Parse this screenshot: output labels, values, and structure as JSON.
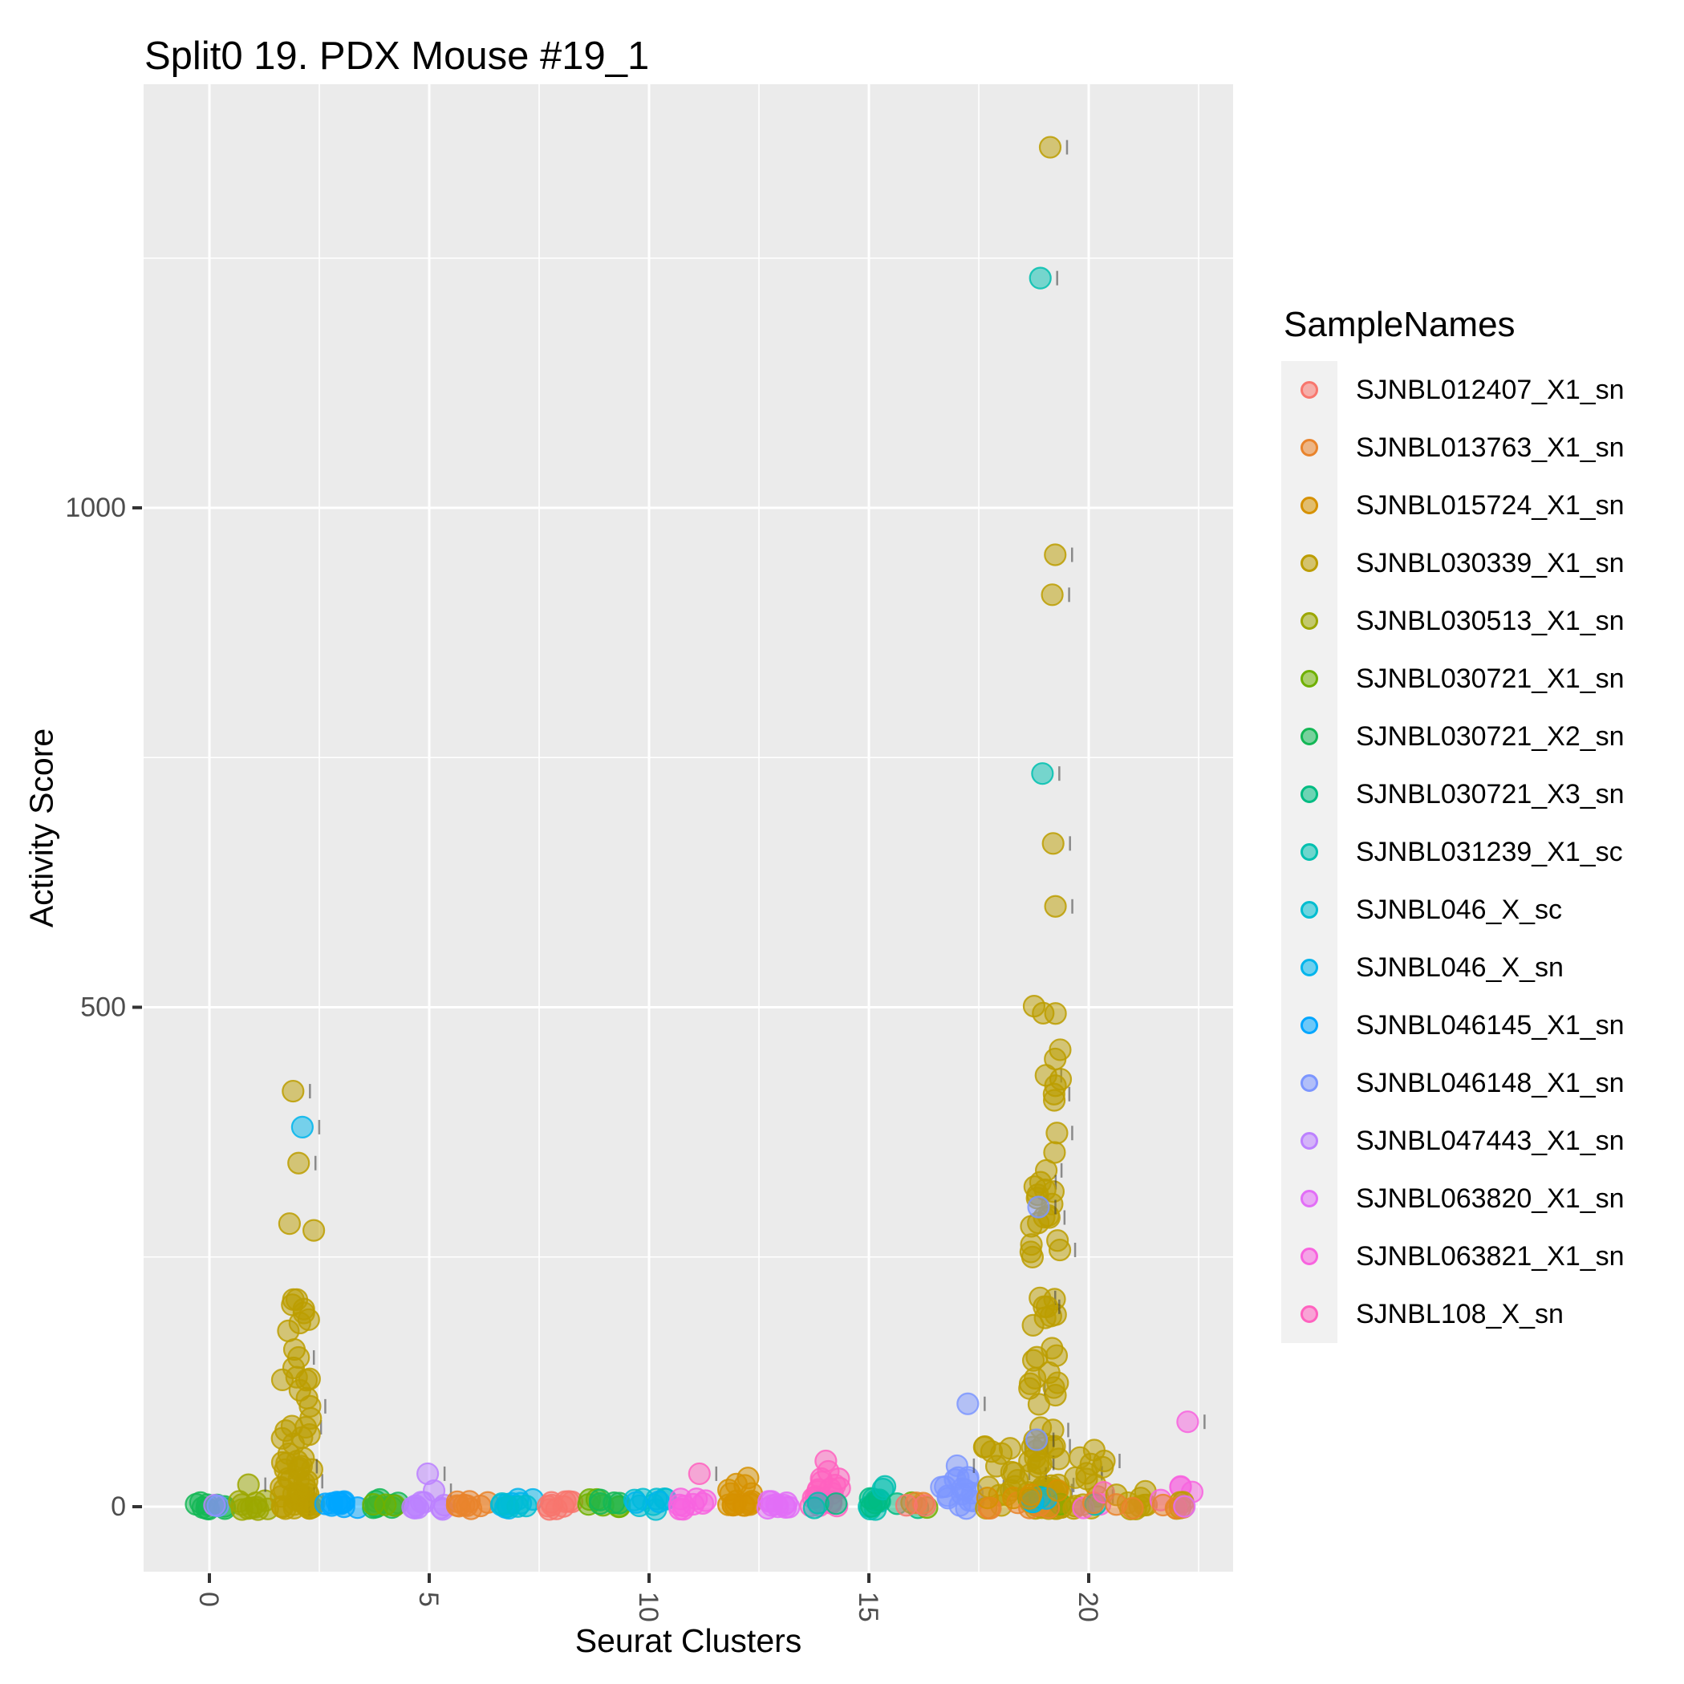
{
  "title": "Split0 19. PDX Mouse #19_1",
  "axes": {
    "x_title": "Seurat Clusters",
    "y_title": "Activity Score",
    "x_tick_labels": [
      "0",
      "5",
      "10",
      "15",
      "20"
    ],
    "y_tick_labels": [
      "0",
      "500",
      "1000"
    ]
  },
  "legend": {
    "title": "SampleNames",
    "items": [
      {
        "name": "SJNBL012407_X1_sn",
        "color": "#F8766D"
      },
      {
        "name": "SJNBL013763_X1_sn",
        "color": "#E9842C"
      },
      {
        "name": "SJNBL015724_X1_sn",
        "color": "#D69100"
      },
      {
        "name": "SJNBL030339_X1_sn",
        "color": "#BC9D00"
      },
      {
        "name": "SJNBL030513_X1_sn",
        "color": "#9CA700"
      },
      {
        "name": "SJNBL030721_X1_sn",
        "color": "#6FB000"
      },
      {
        "name": "SJNBL030721_X2_sn",
        "color": "#13B755"
      },
      {
        "name": "SJNBL030721_X3_sn",
        "color": "#00BC82"
      },
      {
        "name": "SJNBL031239_X1_sc",
        "color": "#00C0AF"
      },
      {
        "name": "SJNBL046_X_sc",
        "color": "#00BDD0"
      },
      {
        "name": "SJNBL046_X_sn",
        "color": "#00B5EC"
      },
      {
        "name": "SJNBL046145_X1_sn",
        "color": "#00A6FF"
      },
      {
        "name": "SJNBL046148_X1_sn",
        "color": "#7C96FF"
      },
      {
        "name": "SJNBL047443_X1_sn",
        "color": "#BC81FF"
      },
      {
        "name": "SJNBL063820_X1_sn",
        "color": "#E26EF7"
      },
      {
        "name": "SJNBL063821_X1_sn",
        "color": "#F863DF"
      },
      {
        "name": "SJNBL108_X_sn",
        "color": "#FF62BF"
      }
    ]
  },
  "colors": {
    "panel_bg": "#EBEBEB",
    "grid": "#FFFFFF",
    "tick_text": "#4D4D4D",
    "tick_mark": "#333333",
    "legend_key_bg": "#F1F1F1"
  },
  "chart_data": {
    "type": "scatter",
    "subtype": "jitter-strip",
    "title": "Split0 19. PDX Mouse #19_1",
    "xlabel": "Seurat Clusters",
    "ylabel": "Activity Score",
    "x_major_ticks": [
      0,
      5,
      10,
      15,
      20
    ],
    "x_minor_ticks": [
      2.5,
      7.5,
      12.5,
      17.5,
      22.5
    ],
    "y_major_ticks": [
      0,
      500,
      1000
    ],
    "y_minor_ticks": [
      250,
      750,
      1250
    ],
    "xlim": [
      -1.5,
      23.3
    ],
    "ylim": [
      -62,
      1425
    ],
    "grid": true,
    "legend_position": "right",
    "point_alpha": 0.5,
    "clusters": [
      {
        "id": 0,
        "groups": [
          [
            "SJNBL030721_X2_sn",
            9,
            -3,
            6,
            1
          ],
          [
            "SJNBL047443_X1_sn",
            1,
            -1,
            2,
            1
          ],
          [
            "SJNBL046148_X1_sn",
            1,
            -1,
            2,
            1
          ]
        ],
        "outliers": []
      },
      {
        "id": 1,
        "groups": [
          [
            "SJNBL030513_X1_sn",
            10,
            -3,
            10,
            1.4
          ]
        ],
        "outliers": [
          [
            "SJNBL030513_X1_sn",
            22
          ]
        ]
      },
      {
        "id": 2,
        "groups": [
          [
            "SJNBL030339_X1_sn",
            55,
            -2,
            145,
            2.0
          ],
          [
            "SJNBL030339_X1_sn",
            12,
            145,
            285,
            1.3
          ]
        ],
        "outliers": [
          [
            "SJNBL030339_X1_sn",
            344
          ],
          [
            "SJNBL046_X_sn",
            380
          ],
          [
            "SJNBL030339_X1_sn",
            416
          ]
        ]
      },
      {
        "id": 3,
        "groups": [
          [
            "SJNBL046145_X1_sn",
            10,
            -3,
            6,
            1
          ]
        ],
        "outliers": []
      },
      {
        "id": 4,
        "groups": [
          [
            "SJNBL030721_X2_sn",
            8,
            -3,
            8,
            1
          ],
          [
            "SJNBL030721_X1_sn",
            3,
            0,
            6,
            1
          ]
        ],
        "outliers": []
      },
      {
        "id": 5,
        "groups": [
          [
            "SJNBL047443_X1_sn",
            9,
            -3,
            6,
            1
          ]
        ],
        "outliers": [
          [
            "SJNBL047443_X1_sn",
            16
          ],
          [
            "SJNBL047443_X1_sn",
            33
          ]
        ]
      },
      {
        "id": 6,
        "groups": [
          [
            "SJNBL013763_X1_sn",
            9,
            -3,
            6,
            1
          ]
        ],
        "outliers": []
      },
      {
        "id": 7,
        "groups": [
          [
            "SJNBL046_X_sn",
            8,
            -3,
            8,
            1
          ],
          [
            "SJNBL046_X_sc",
            4,
            0,
            10,
            1
          ]
        ],
        "outliers": []
      },
      {
        "id": 8,
        "groups": [
          [
            "SJNBL012407_X1_sn",
            9,
            -3,
            6,
            1
          ]
        ],
        "outliers": []
      },
      {
        "id": 9,
        "groups": [
          [
            "SJNBL030721_X1_sn",
            6,
            -3,
            8,
            1
          ],
          [
            "SJNBL030721_X2_sn",
            4,
            0,
            8,
            1
          ]
        ],
        "outliers": []
      },
      {
        "id": 10,
        "groups": [
          [
            "SJNBL046_X_sc",
            8,
            -3,
            8,
            1
          ],
          [
            "SJNBL046_X_sn",
            2,
            4,
            14,
            1
          ]
        ],
        "outliers": []
      },
      {
        "id": 11,
        "groups": [
          [
            "SJNBL063821_X1_sn",
            9,
            -3,
            8,
            1
          ]
        ],
        "outliers": [
          [
            "SJNBL108_X_sn",
            33
          ]
        ]
      },
      {
        "id": 12,
        "groups": [
          [
            "SJNBL015724_X1_sn",
            12,
            -3,
            14,
            1.3
          ],
          [
            "SJNBL015724_X1_sn",
            4,
            14,
            30,
            1
          ]
        ],
        "outliers": []
      },
      {
        "id": 13,
        "groups": [
          [
            "SJNBL063820_X1_sn",
            10,
            -3,
            8,
            1
          ]
        ],
        "outliers": []
      },
      {
        "id": 14,
        "groups": [
          [
            "SJNBL108_X_sn",
            20,
            0,
            50,
            1.8
          ],
          [
            "SJNBL031239_X1_sc",
            2,
            -2,
            6,
            1
          ],
          [
            "SJNBL030721_X3_sn",
            1,
            0,
            4,
            1
          ]
        ],
        "outliers": []
      },
      {
        "id": 15,
        "groups": [
          [
            "SJNBL031239_X1_sc",
            6,
            -3,
            8,
            1
          ],
          [
            "SJNBL030721_X3_sn",
            4,
            0,
            10,
            1
          ],
          [
            "SJNBL031239_X1_sc",
            2,
            10,
            25,
            1
          ]
        ],
        "outliers": []
      },
      {
        "id": 16,
        "groups": [
          [
            "SJNBL030721_X3_sn",
            2,
            -2,
            6,
            1
          ],
          [
            "SJNBL030721_X1_sn",
            2,
            -2,
            6,
            1
          ],
          [
            "SJNBL013763_X1_sn",
            2,
            -2,
            6,
            1
          ],
          [
            "SJNBL012407_X1_sn",
            2,
            -2,
            6,
            1
          ]
        ],
        "outliers": []
      },
      {
        "id": 17,
        "groups": [
          [
            "SJNBL046148_X1_sn",
            16,
            -2,
            30,
            1.6
          ]
        ],
        "outliers": [
          [
            "SJNBL046148_X1_sn",
            41
          ],
          [
            "SJNBL046148_X1_sn",
            103
          ]
        ]
      },
      {
        "id": 18,
        "groups": [
          [
            "SJNBL030339_X1_sn",
            16,
            -2,
            65,
            1.6
          ],
          [
            "SJNBL013763_X1_sn",
            3,
            -2,
            6,
            1
          ],
          [
            "SJNBL015724_X1_sn",
            2,
            0,
            10,
            1
          ]
        ],
        "outliers": []
      },
      {
        "id": 19,
        "groups": [
          [
            "SJNBL030339_X1_sn",
            85,
            -2,
            350,
            2.4
          ],
          [
            "SJNBL030339_X1_sn",
            12,
            350,
            545,
            1
          ],
          [
            "SJNBL030721_X1_sn",
            2,
            -2,
            8,
            1
          ],
          [
            "SJNBL013763_X1_sn",
            3,
            -2,
            10,
            1
          ],
          [
            "SJNBL031239_X1_sc",
            2,
            0,
            12,
            1
          ],
          [
            "SJNBL046_X_sn",
            2,
            0,
            10,
            1
          ],
          [
            "SJNBL015724_X1_sn",
            3,
            0,
            40,
            1
          ]
        ],
        "outliers": [
          [
            "SJNBL046148_X1_sn",
            67
          ],
          [
            "SJNBL046148_X1_sn",
            300
          ],
          [
            "SJNBL030339_X1_sn",
            601
          ],
          [
            "SJNBL030339_X1_sn",
            664
          ],
          [
            "SJNBL031239_X1_sc",
            734
          ],
          [
            "SJNBL030339_X1_sn",
            913
          ],
          [
            "SJNBL030339_X1_sn",
            953
          ],
          [
            "SJNBL031239_X1_sc",
            1230
          ],
          [
            "SJNBL030339_X1_sn",
            1361
          ]
        ]
      },
      {
        "id": 20,
        "groups": [
          [
            "SJNBL030339_X1_sn",
            14,
            -2,
            76,
            1.7
          ],
          [
            "SJNBL063821_X1_sn",
            2,
            -2,
            8,
            1
          ],
          [
            "SJNBL031239_X1_sc",
            1,
            0,
            5,
            1
          ],
          [
            "SJNBL013763_X1_sn",
            1,
            0,
            5,
            1
          ],
          [
            "SJNBL108_X_sn",
            1,
            8,
            20,
            1
          ]
        ],
        "outliers": []
      },
      {
        "id": 21,
        "groups": [
          [
            "SJNBL030339_X1_sn",
            9,
            -3,
            17,
            1.2
          ],
          [
            "SJNBL013763_X1_sn",
            2,
            -2,
            5,
            1
          ]
        ],
        "outliers": []
      },
      {
        "id": 22,
        "groups": [
          [
            "SJNBL063821_X1_sn",
            4,
            0,
            22,
            1
          ],
          [
            "SJNBL030339_X1_sn",
            4,
            -3,
            10,
            1
          ],
          [
            "SJNBL013763_X1_sn",
            3,
            -2,
            8,
            1
          ],
          [
            "SJNBL063820_X1_sn",
            1,
            0,
            5,
            1
          ]
        ],
        "outliers": [
          [
            "SJNBL063821_X1_sn",
            85
          ]
        ]
      }
    ]
  }
}
